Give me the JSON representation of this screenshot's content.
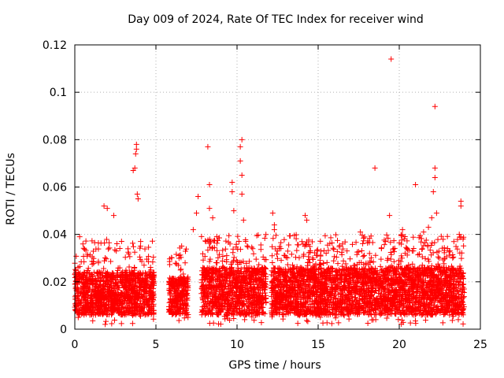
{
  "chart_data": {
    "type": "scatter",
    "title": "Day 009 of 2024, Rate Of TEC Index for receiver wind",
    "xlabel": "GPS time / hours",
    "ylabel": "ROTI / TECUs",
    "xlim": [
      0,
      25
    ],
    "ylim": [
      0,
      0.12
    ],
    "xticks": [
      0,
      5,
      10,
      15,
      20,
      25
    ],
    "yticks": [
      0,
      0.02,
      0.04,
      0.06,
      0.08,
      0.1,
      0.12
    ],
    "xtick_labels": [
      "0",
      "5",
      "10",
      "15",
      "20",
      "25"
    ],
    "ytick_labels": [
      "0",
      "0.02",
      "0.04",
      "0.06",
      "0.08",
      "0.1",
      "0.12"
    ],
    "grid": true,
    "marker": "+",
    "color": "#ff0000",
    "segments": [
      {
        "x0": 0.0,
        "x1": 4.9,
        "base_max": 0.024
      },
      {
        "x0": 5.8,
        "x1": 7.0,
        "base_max": 0.022
      },
      {
        "x0": 7.8,
        "x1": 11.8,
        "base_max": 0.026
      },
      {
        "x0": 12.1,
        "x1": 18.9,
        "base_max": 0.026
      },
      {
        "x0": 18.9,
        "x1": 24.0,
        "base_max": 0.026
      }
    ],
    "outliers": [
      {
        "x": 3.6,
        "y": 0.067
      },
      {
        "x": 3.7,
        "y": 0.068
      },
      {
        "x": 3.75,
        "y": 0.074
      },
      {
        "x": 3.8,
        "y": 0.076
      },
      {
        "x": 3.8,
        "y": 0.078
      },
      {
        "x": 3.85,
        "y": 0.057
      },
      {
        "x": 3.9,
        "y": 0.055
      },
      {
        "x": 1.8,
        "y": 0.052
      },
      {
        "x": 2.0,
        "y": 0.051
      },
      {
        "x": 2.4,
        "y": 0.048
      },
      {
        "x": 0.3,
        "y": 0.039
      },
      {
        "x": 0.5,
        "y": 0.036
      },
      {
        "x": 6.8,
        "y": 0.028
      },
      {
        "x": 7.3,
        "y": 0.042
      },
      {
        "x": 7.5,
        "y": 0.049
      },
      {
        "x": 7.6,
        "y": 0.056
      },
      {
        "x": 8.2,
        "y": 0.077
      },
      {
        "x": 8.3,
        "y": 0.061
      },
      {
        "x": 8.3,
        "y": 0.051
      },
      {
        "x": 8.5,
        "y": 0.047
      },
      {
        "x": 9.7,
        "y": 0.058
      },
      {
        "x": 9.7,
        "y": 0.062
      },
      {
        "x": 9.8,
        "y": 0.05
      },
      {
        "x": 10.3,
        "y": 0.08
      },
      {
        "x": 10.2,
        "y": 0.077
      },
      {
        "x": 10.2,
        "y": 0.071
      },
      {
        "x": 10.3,
        "y": 0.065
      },
      {
        "x": 10.3,
        "y": 0.057
      },
      {
        "x": 10.4,
        "y": 0.046
      },
      {
        "x": 12.2,
        "y": 0.049
      },
      {
        "x": 12.3,
        "y": 0.044
      },
      {
        "x": 12.3,
        "y": 0.042
      },
      {
        "x": 12.6,
        "y": 0.034
      },
      {
        "x": 14.2,
        "y": 0.048
      },
      {
        "x": 14.3,
        "y": 0.046
      },
      {
        "x": 14.0,
        "y": 0.037
      },
      {
        "x": 17.6,
        "y": 0.041
      },
      {
        "x": 18.5,
        "y": 0.068
      },
      {
        "x": 19.4,
        "y": 0.048
      },
      {
        "x": 19.5,
        "y": 0.114
      },
      {
        "x": 21.0,
        "y": 0.061
      },
      {
        "x": 21.5,
        "y": 0.041
      },
      {
        "x": 21.8,
        "y": 0.043
      },
      {
        "x": 22.0,
        "y": 0.047
      },
      {
        "x": 22.2,
        "y": 0.094
      },
      {
        "x": 22.2,
        "y": 0.068
      },
      {
        "x": 22.2,
        "y": 0.064
      },
      {
        "x": 22.1,
        "y": 0.058
      },
      {
        "x": 22.3,
        "y": 0.049
      },
      {
        "x": 23.8,
        "y": 0.054
      },
      {
        "x": 23.8,
        "y": 0.052
      },
      {
        "x": 23.7,
        "y": 0.04
      },
      {
        "x": 20.2,
        "y": 0.042
      },
      {
        "x": 16.5,
        "y": 0.036
      }
    ]
  }
}
